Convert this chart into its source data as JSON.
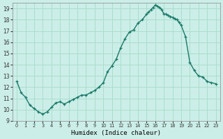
{
  "title": "",
  "xlabel": "Humidex (Indice chaleur)",
  "ylabel": "",
  "background_color": "#cceee8",
  "grid_color": "#aaddcc",
  "line_color": "#1a7a6a",
  "xlim": [
    -0.5,
    23.5
  ],
  "ylim": [
    9,
    19.5
  ],
  "yticks": [
    9,
    10,
    11,
    12,
    13,
    14,
    15,
    16,
    17,
    18,
    19
  ],
  "xticks": [
    0,
    1,
    2,
    3,
    4,
    5,
    6,
    7,
    8,
    9,
    10,
    11,
    12,
    13,
    14,
    15,
    16,
    17,
    18,
    19,
    20,
    21,
    22,
    23
  ],
  "x": [
    0,
    0.5,
    1.0,
    1.5,
    2.0,
    2.5,
    3.0,
    3.5,
    4.0,
    4.5,
    5.0,
    5.5,
    6.0,
    6.5,
    7.0,
    7.5,
    8.0,
    8.5,
    9.0,
    9.5,
    10.0,
    10.5,
    11.0,
    11.5,
    12.0,
    12.5,
    13.0,
    13.5,
    14.0,
    14.5,
    15.0,
    15.25,
    15.5,
    15.75,
    16.0,
    16.25,
    16.5,
    16.75,
    17.0,
    17.25,
    17.5,
    17.75,
    18.0,
    18.25,
    18.5,
    18.75,
    19.0,
    19.5,
    20.0,
    20.5,
    21.0,
    21.5,
    22.0,
    22.5,
    23.0
  ],
  "y": [
    12.5,
    11.5,
    11.1,
    10.4,
    10.1,
    9.8,
    9.6,
    9.8,
    10.2,
    10.6,
    10.7,
    10.5,
    10.7,
    10.9,
    11.1,
    11.3,
    11.3,
    11.5,
    11.7,
    12.0,
    12.4,
    13.4,
    13.9,
    14.5,
    15.5,
    16.3,
    16.9,
    17.1,
    17.7,
    18.0,
    18.5,
    18.7,
    18.9,
    19.1,
    19.3,
    19.2,
    19.1,
    18.9,
    18.5,
    18.5,
    18.4,
    18.3,
    18.2,
    18.1,
    18.0,
    17.8,
    17.5,
    16.5,
    14.2,
    13.5,
    13.0,
    12.9,
    12.5,
    12.4,
    12.3
  ]
}
